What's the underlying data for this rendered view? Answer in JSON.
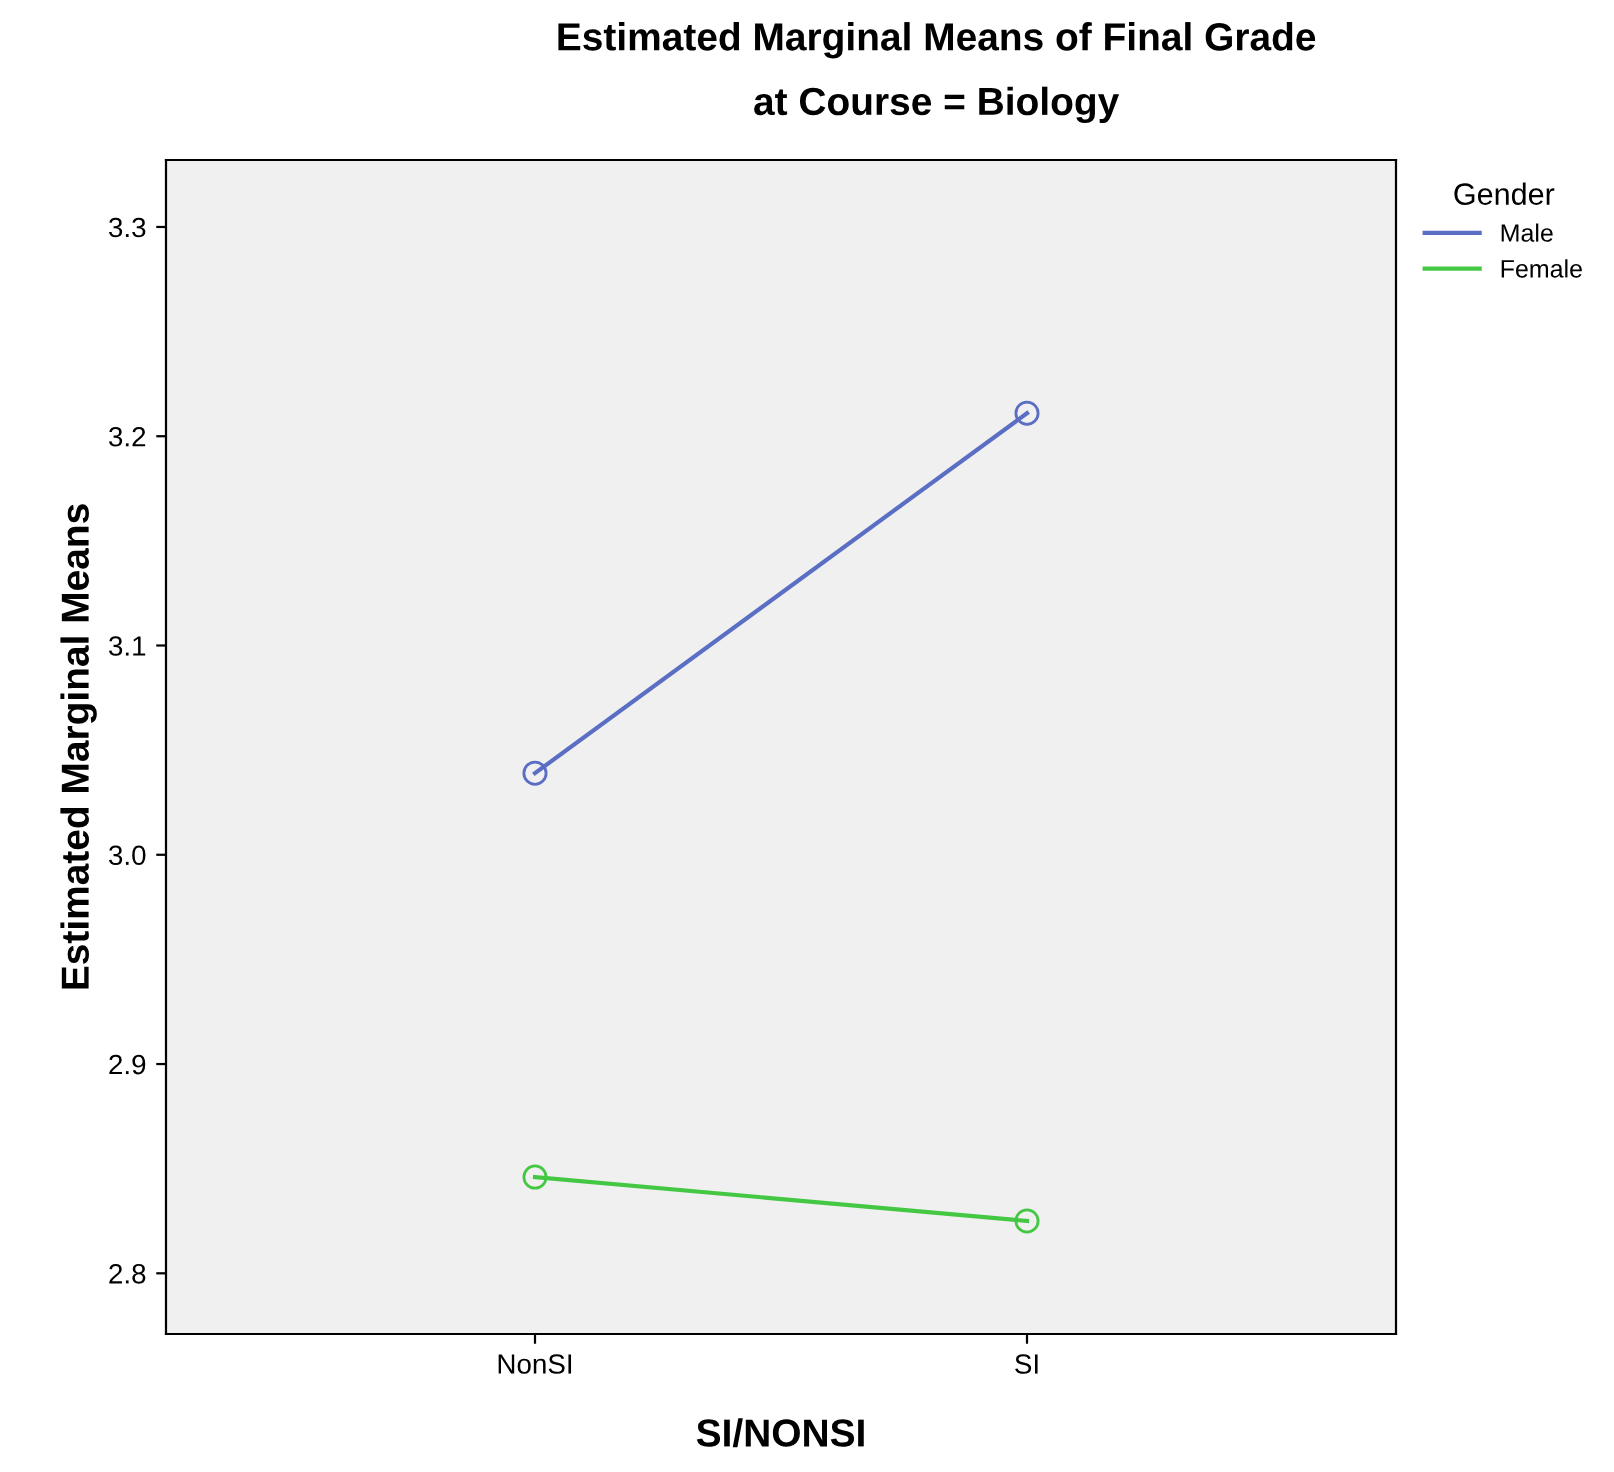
{
  "chart_data": {
    "type": "line",
    "title": "Estimated Marginal Means of Final Grade\nat Course = Biology",
    "xlabel": "SI/NONSI",
    "ylabel": "Estimated Marginal Means",
    "legend_title": "Gender",
    "categories": [
      "NonSI",
      "SI"
    ],
    "series": [
      {
        "name": "Male",
        "color": "#5a6ec4",
        "values": [
          3.039,
          3.211
        ]
      },
      {
        "name": "Female",
        "color": "#44c844",
        "values": [
          2.846,
          2.825
        ]
      }
    ],
    "ylim": [
      2.771,
      3.332
    ],
    "yticks": [
      2.8,
      2.9,
      {
        "value": 3,
        "label": "3.0"
      },
      3.1,
      3.2,
      3.3
    ],
    "grid": false,
    "legend": "right",
    "marker": "circle",
    "line_style": "solid"
  }
}
